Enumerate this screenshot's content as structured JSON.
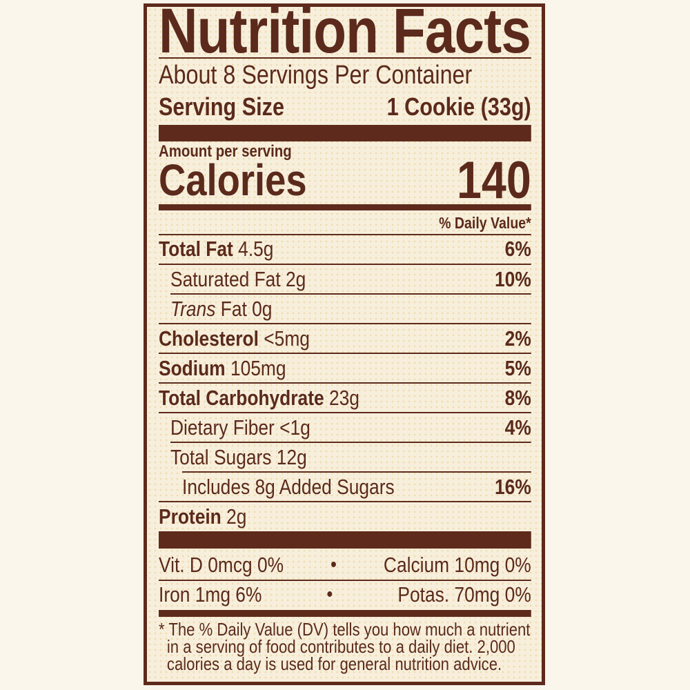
{
  "label": {
    "title": "Nutrition Facts",
    "servings_per_container": "About 8 Servings Per Container",
    "serving_size_label": "Serving Size",
    "serving_size_value": "1 Cookie (33g)",
    "amount_per_serving": "Amount per serving",
    "calories_label": "Calories",
    "calories_value": "140",
    "dv_header": "% Daily Value*",
    "nutrients": [
      {
        "name": "Total Fat",
        "amount": "4.5g",
        "dv": "6%"
      },
      {
        "name": "Saturated Fat 2g",
        "amount": "",
        "dv": "10%"
      },
      {
        "name": "Trans",
        "amount": "Fat 0g",
        "dv": ""
      },
      {
        "name": "Cholesterol",
        "amount": "<5mg",
        "dv": "2%"
      },
      {
        "name": "Sodium",
        "amount": "105mg",
        "dv": "5%"
      },
      {
        "name": "Total Carbohydrate",
        "amount": "23g",
        "dv": "8%"
      },
      {
        "name": "Dietary Fiber <1g",
        "amount": "",
        "dv": "4%"
      },
      {
        "name": "Total Sugars 12g",
        "amount": "",
        "dv": ""
      },
      {
        "name": "Includes 8g Added Sugars",
        "amount": "",
        "dv": "16%"
      },
      {
        "name": "Protein",
        "amount": "2g",
        "dv": ""
      }
    ],
    "vitamins": [
      {
        "left": "Vit. D 0mcg 0%",
        "right": "Calcium 10mg 0%"
      },
      {
        "left": "Iron 1mg 6%",
        "right": "Potas. 70mg 0%"
      }
    ],
    "bullet": "•",
    "footnote": [
      "* The % Daily Value (DV) tells you how much a nutrient",
      "in a serving of food contributes to a daily diet. 2,000",
      "calories a day is used for general nutrition advice."
    ]
  },
  "colors": {
    "text": "#5b2a1c",
    "background": "#f7efdc",
    "rule": "#5e2a1c"
  }
}
